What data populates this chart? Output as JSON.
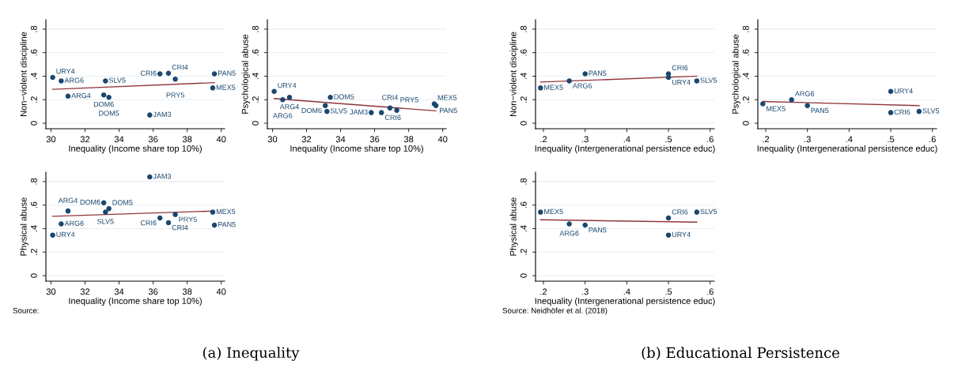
{
  "chart_data": [
    {
      "type": "scatter",
      "xlabel": "Inequality (Income share top 10%)",
      "ylabel": "Non−violent discipline",
      "xlim": [
        29.7,
        40.2
      ],
      "ylim": [
        -0.047,
        0.88
      ],
      "xticks": [
        30,
        32,
        34,
        36,
        38,
        40
      ],
      "yticks": [
        0,
        {
          "value": 0.2,
          "label": ".2"
        },
        {
          "value": 0.4,
          "label": ".4"
        },
        {
          "value": 0.6,
          "label": ".6"
        },
        {
          "value": 0.8,
          "label": ".8"
        }
      ],
      "grid": "y",
      "series": [
        {
          "marker": "circle",
          "color": "#1a476f",
          "x": [
            30.1,
            30.6,
            31.0,
            33.2,
            33.1,
            33.4,
            35.8,
            36.4,
            36.9,
            37.3,
            39.6,
            39.5
          ],
          "values": [
            0.39,
            0.36,
            0.23,
            0.36,
            0.24,
            0.22,
            0.07,
            0.42,
            0.425,
            0.375,
            0.42,
            0.3
          ]
        },
        {
          "type": "line",
          "color": "#90353b",
          "x": [
            30.1,
            39.6
          ],
          "values": [
            0.288,
            0.345
          ]
        }
      ],
      "annotations": [
        {
          "text": "URY4",
          "x": 30.1,
          "y": 0.39
        },
        {
          "text": "ARG6",
          "x": 30.6,
          "y": 0.36
        },
        {
          "text": "ARG4",
          "x": 31.0,
          "y": 0.23
        },
        {
          "text": "SLV5",
          "x": 33.2,
          "y": 0.36
        },
        {
          "text": "DOM6",
          "x": 33.1,
          "y": 0.24
        },
        {
          "text": "DOM5",
          "x": 33.4,
          "y": 0.22
        },
        {
          "text": "JAM3",
          "x": 35.8,
          "y": 0.07
        },
        {
          "text": "CRI6",
          "x": 36.4,
          "y": 0.42
        },
        {
          "text": "CRI4",
          "x": 36.9,
          "y": 0.425
        },
        {
          "text": "PRY5",
          "x": 37.3,
          "y": 0.375
        },
        {
          "text": "PAN5",
          "x": 39.6,
          "y": 0.42
        },
        {
          "text": "MEX5",
          "x": 39.5,
          "y": 0.3
        }
      ]
    },
    {
      "type": "scatter",
      "xlabel": "Inequality (Income share top 10%)",
      "ylabel": "Psychological abuse",
      "xlim": [
        29.7,
        40.2
      ],
      "ylim": [
        -0.047,
        0.88
      ],
      "xticks": [
        30,
        32,
        34,
        36,
        38,
        40
      ],
      "yticks": [
        0,
        {
          "value": 0.2,
          "label": ".2"
        },
        {
          "value": 0.4,
          "label": ".4"
        },
        {
          "value": 0.6,
          "label": ".6"
        },
        {
          "value": 0.8,
          "label": ".8"
        }
      ],
      "grid": "y",
      "series": [
        {
          "marker": "circle",
          "color": "#1a476f",
          "x": [
            30.1,
            31.0,
            30.6,
            33.4,
            33.1,
            33.2,
            35.8,
            36.4,
            36.9,
            37.3,
            39.5,
            39.6
          ],
          "values": [
            0.27,
            0.22,
            0.2,
            0.22,
            0.15,
            0.1,
            0.09,
            0.09,
            0.13,
            0.11,
            0.165,
            0.15
          ]
        },
        {
          "type": "line",
          "color": "#90353b",
          "x": [
            30.1,
            39.6
          ],
          "values": [
            0.21,
            0.105
          ]
        }
      ],
      "annotations": [
        {
          "text": "URY4",
          "x": 30.1,
          "y": 0.27
        },
        {
          "text": "ARG4",
          "x": 31.0,
          "y": 0.22
        },
        {
          "text": "ARG6",
          "x": 30.6,
          "y": 0.2
        },
        {
          "text": "DOM5",
          "x": 33.4,
          "y": 0.22
        },
        {
          "text": "DOM6",
          "x": 33.1,
          "y": 0.15
        },
        {
          "text": "SLV5",
          "x": 33.2,
          "y": 0.1
        },
        {
          "text": "JAM3",
          "x": 35.8,
          "y": 0.09
        },
        {
          "text": "CRI6",
          "x": 36.4,
          "y": 0.09
        },
        {
          "text": "CRI4",
          "x": 36.9,
          "y": 0.13
        },
        {
          "text": "PRY5",
          "x": 37.3,
          "y": 0.11
        },
        {
          "text": "MEX5",
          "x": 39.5,
          "y": 0.165
        },
        {
          "text": "PAN5",
          "x": 39.6,
          "y": 0.15
        }
      ]
    },
    {
      "type": "scatter",
      "xlabel": "Inequality (Income share top 10%)",
      "ylabel": "Physical abuse",
      "xlim": [
        29.7,
        40.2
      ],
      "ylim": [
        -0.047,
        0.88
      ],
      "xticks": [
        30,
        32,
        34,
        36,
        38,
        40
      ],
      "yticks": [
        0,
        {
          "value": 0.2,
          "label": ".2"
        },
        {
          "value": 0.4,
          "label": ".4"
        },
        {
          "value": 0.6,
          "label": ".6"
        },
        {
          "value": 0.8,
          "label": ".8"
        }
      ],
      "grid": "y",
      "series": [
        {
          "marker": "circle",
          "color": "#1a476f",
          "x": [
            35.8,
            33.1,
            33.4,
            33.2,
            31.0,
            30.6,
            30.1,
            36.4,
            37.3,
            36.9,
            39.5,
            39.6
          ],
          "values": [
            0.84,
            0.62,
            0.57,
            0.54,
            0.55,
            0.44,
            0.345,
            0.49,
            0.52,
            0.45,
            0.54,
            0.43
          ]
        },
        {
          "type": "line",
          "color": "#90353b",
          "x": [
            30.1,
            39.6
          ],
          "values": [
            0.505,
            0.55
          ]
        }
      ],
      "annotations": [
        "Source:",
        "(a) Inequality",
        {
          "text": "JAM3",
          "x": 35.8,
          "y": 0.84
        },
        {
          "text": "DOM6",
          "x": 33.1,
          "y": 0.62
        },
        {
          "text": "DOM5",
          "x": 33.4,
          "y": 0.57
        },
        {
          "text": "SLV5",
          "x": 33.2,
          "y": 0.54
        },
        {
          "text": "ARG4",
          "x": 31.0,
          "y": 0.55
        },
        {
          "text": "ARG6",
          "x": 30.6,
          "y": 0.44
        },
        {
          "text": "URY4",
          "x": 30.1,
          "y": 0.345
        },
        {
          "text": "CRI6",
          "x": 36.4,
          "y": 0.49
        },
        {
          "text": "PRY5",
          "x": 37.3,
          "y": 0.52
        },
        {
          "text": "CRI4",
          "x": 36.9,
          "y": 0.45
        },
        {
          "text": "MEX5",
          "x": 39.5,
          "y": 0.54
        },
        {
          "text": "PAN5",
          "x": 39.6,
          "y": 0.43
        }
      ]
    },
    {
      "type": "scatter",
      "xlabel": "Inequality (Intergenerational persistence educ)",
      "ylabel": "Non−violent discipline",
      "xlim": [
        0.181,
        0.61
      ],
      "ylim": [
        -0.047,
        0.88
      ],
      "xticks": [
        {
          "value": 0.2,
          "label": ".2"
        },
        {
          "value": 0.3,
          "label": ".3"
        },
        {
          "value": 0.4,
          "label": ".4"
        },
        {
          "value": 0.5,
          "label": ".5"
        },
        {
          "value": 0.6,
          "label": ".6"
        }
      ],
      "yticks": [
        0,
        {
          "value": 0.2,
          "label": ".2"
        },
        {
          "value": 0.4,
          "label": ".4"
        },
        {
          "value": 0.6,
          "label": ".6"
        },
        {
          "value": 0.8,
          "label": ".8"
        }
      ],
      "grid": "y",
      "series": [
        {
          "marker": "circle",
          "color": "#1a476f",
          "x": [
            0.193,
            0.262,
            0.3,
            0.5,
            0.5,
            0.568
          ],
          "values": [
            0.3,
            0.36,
            0.42,
            0.42,
            0.39,
            0.36
          ]
        },
        {
          "type": "line",
          "color": "#90353b",
          "x": [
            0.193,
            0.568
          ],
          "values": [
            0.35,
            0.4
          ]
        }
      ],
      "annotations": [
        {
          "text": "MEX5",
          "x": 0.193,
          "y": 0.3
        },
        {
          "text": "ARG6",
          "x": 0.262,
          "y": 0.36
        },
        {
          "text": "PAN5",
          "x": 0.3,
          "y": 0.42
        },
        {
          "text": "CRI6",
          "x": 0.5,
          "y": 0.42
        },
        {
          "text": "URY4",
          "x": 0.5,
          "y": 0.39
        },
        {
          "text": "SLV5",
          "x": 0.568,
          "y": 0.36
        }
      ]
    },
    {
      "type": "scatter",
      "xlabel": "Inequality (Intergenerational persistence educ)",
      "ylabel": "Psychological abuse",
      "xlim": [
        0.181,
        0.61
      ],
      "ylim": [
        -0.047,
        0.88
      ],
      "xticks": [
        {
          "value": 0.2,
          "label": ".2"
        },
        {
          "value": 0.3,
          "label": ".3"
        },
        {
          "value": 0.4,
          "label": ".4"
        },
        {
          "value": 0.5,
          "label": ".5"
        },
        {
          "value": 0.6,
          "label": ".6"
        }
      ],
      "yticks": [
        0,
        {
          "value": 0.2,
          "label": ".2"
        },
        {
          "value": 0.4,
          "label": ".4"
        },
        {
          "value": 0.6,
          "label": ".6"
        },
        {
          "value": 0.8,
          "label": ".8"
        }
      ],
      "grid": "y",
      "series": [
        {
          "marker": "circle",
          "color": "#1a476f",
          "x": [
            0.193,
            0.262,
            0.3,
            0.5,
            0.5,
            0.568
          ],
          "values": [
            0.165,
            0.2,
            0.15,
            0.27,
            0.09,
            0.1
          ]
        },
        {
          "type": "line",
          "color": "#90353b",
          "x": [
            0.193,
            0.568
          ],
          "values": [
            0.185,
            0.15
          ]
        }
      ],
      "annotations": [
        {
          "text": "MEX5",
          "x": 0.193,
          "y": 0.165
        },
        {
          "text": "ARG6",
          "x": 0.262,
          "y": 0.2
        },
        {
          "text": "PAN5",
          "x": 0.3,
          "y": 0.15
        },
        {
          "text": "URY4",
          "x": 0.5,
          "y": 0.27
        },
        {
          "text": "CRI6",
          "x": 0.5,
          "y": 0.09
        },
        {
          "text": "SLV5",
          "x": 0.568,
          "y": 0.1
        }
      ]
    },
    {
      "type": "scatter",
      "xlabel": "Inequality (Intergenerational persistence educ)",
      "ylabel": "Physical abuse",
      "xlim": [
        0.181,
        0.61
      ],
      "ylim": [
        -0.047,
        0.88
      ],
      "xticks": [
        {
          "value": 0.2,
          "label": ".2"
        },
        {
          "value": 0.3,
          "label": ".3"
        },
        {
          "value": 0.4,
          "label": ".4"
        },
        {
          "value": 0.5,
          "label": ".5"
        },
        {
          "value": 0.6,
          "label": ".6"
        }
      ],
      "yticks": [
        0,
        {
          "value": 0.2,
          "label": ".2"
        },
        {
          "value": 0.4,
          "label": ".4"
        },
        {
          "value": 0.6,
          "label": ".6"
        },
        {
          "value": 0.8,
          "label": ".8"
        }
      ],
      "grid": "y",
      "series": [
        {
          "marker": "circle",
          "color": "#1a476f",
          "x": [
            0.193,
            0.262,
            0.3,
            0.5,
            0.5,
            0.568
          ],
          "values": [
            0.54,
            0.44,
            0.43,
            0.49,
            0.345,
            0.54
          ]
        },
        {
          "type": "line",
          "color": "#90353b",
          "x": [
            0.193,
            0.568
          ],
          "values": [
            0.475,
            0.455
          ]
        }
      ],
      "annotations": [
        "Source: Neidhöfer et al. (2018)",
        "(b) Educational Persistence",
        {
          "text": "MEX5",
          "x": 0.193,
          "y": 0.54
        },
        {
          "text": "ARG6",
          "x": 0.262,
          "y": 0.44
        },
        {
          "text": "PAN5",
          "x": 0.3,
          "y": 0.43
        },
        {
          "text": "CRI6",
          "x": 0.5,
          "y": 0.49
        },
        {
          "text": "URY4",
          "x": 0.5,
          "y": 0.345
        },
        {
          "text": "SLV5",
          "x": 0.568,
          "y": 0.54
        }
      ]
    }
  ]
}
